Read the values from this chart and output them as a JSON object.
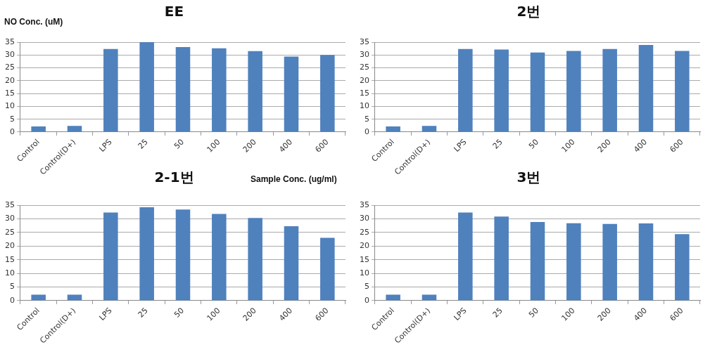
{
  "chart_data": [
    {
      "type": "bar",
      "title": "EE",
      "ylabel": "NO Conc. (uM)",
      "xlabel": "Sample Conc. (ug/ml)",
      "categories": [
        "Control",
        "Control(D+)",
        "LPS",
        "25",
        "50",
        "100",
        "200",
        "400",
        "600"
      ],
      "color": "#4f81bd",
      "values": [
        2.2,
        2.4,
        32.3,
        35,
        33.1,
        32.6,
        31.5,
        29.4,
        30.0
      ],
      "ylim": [
        0,
        35
      ],
      "yticks": [
        0,
        5,
        10,
        15,
        20,
        25,
        30,
        35
      ],
      "grid": "y",
      "legend": false
    },
    {
      "type": "bar",
      "title": "2번",
      "categories": [
        "Control",
        "Control(D+)",
        "LPS",
        "25",
        "50",
        "100",
        "200",
        "400",
        "600"
      ],
      "color": "#4f81bd",
      "values": [
        2.2,
        2.4,
        32.3,
        32.1,
        31.0,
        31.6,
        32.3,
        33.9,
        31.6
      ],
      "ylim": [
        0,
        35
      ],
      "yticks": [
        0,
        5,
        10,
        15,
        20,
        25,
        30,
        35
      ],
      "grid": "y",
      "legend": false
    },
    {
      "type": "bar",
      "title": "2-1번",
      "categories": [
        "Control",
        "Control(D+)",
        "LPS",
        "25",
        "50",
        "100",
        "200",
        "400",
        "600"
      ],
      "color": "#4f81bd",
      "values": [
        2.2,
        2.2,
        32.3,
        34.2,
        33.4,
        31.8,
        30.3,
        27.3,
        23.0
      ],
      "ylim": [
        0,
        35
      ],
      "yticks": [
        0,
        5,
        10,
        15,
        20,
        25,
        30,
        35
      ],
      "grid": "y",
      "legend": false
    },
    {
      "type": "bar",
      "title": "3번",
      "categories": [
        "Control",
        "Control(D+)",
        "LPS",
        "25",
        "50",
        "100",
        "200",
        "400",
        "600"
      ],
      "color": "#4f81bd",
      "values": [
        2.2,
        2.2,
        32.3,
        30.8,
        28.8,
        28.4,
        28.1,
        28.3,
        24.4
      ],
      "ylim": [
        0,
        35
      ],
      "yticks": [
        0,
        5,
        10,
        15,
        20,
        25,
        30,
        35
      ],
      "grid": "y",
      "legend": false
    }
  ]
}
